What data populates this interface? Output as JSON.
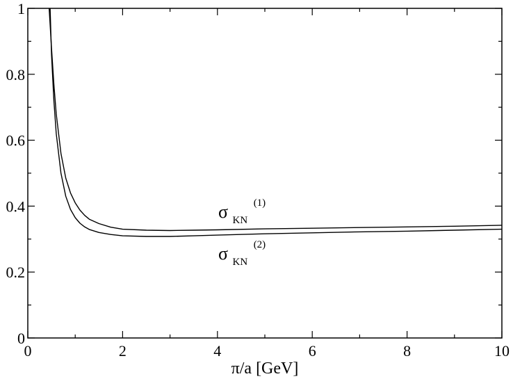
{
  "chart_data": {
    "type": "line",
    "title": "",
    "xlabel": "π/a [GeV]",
    "ylabel": "",
    "xlim": [
      0,
      10
    ],
    "ylim": [
      0,
      1
    ],
    "xticks": [
      0,
      2,
      4,
      6,
      8,
      10
    ],
    "yticks": [
      0,
      0.2,
      0.4,
      0.6,
      0.8,
      1
    ],
    "xtick_labels": [
      "0",
      "2",
      "4",
      "6",
      "8",
      "10"
    ],
    "ytick_labels": [
      "0",
      "0.2",
      "0.4",
      "0.6",
      "0.8",
      "1"
    ],
    "grid": false,
    "series": [
      {
        "name": "σKN(1)",
        "label": {
          "base": "σ",
          "sub": "KN",
          "sup": "(1)"
        },
        "x": [
          0.45,
          0.5,
          0.55,
          0.6,
          0.7,
          0.8,
          0.9,
          1.0,
          1.1,
          1.2,
          1.3,
          1.5,
          1.75,
          2.0,
          2.5,
          3.0,
          3.5,
          4.0,
          5.0,
          6.0,
          7.0,
          8.0,
          9.0,
          10.0
        ],
        "y": [
          1.0,
          0.88,
          0.77,
          0.68,
          0.56,
          0.485,
          0.44,
          0.41,
          0.388,
          0.372,
          0.36,
          0.347,
          0.336,
          0.33,
          0.327,
          0.326,
          0.327,
          0.328,
          0.331,
          0.333,
          0.335,
          0.337,
          0.339,
          0.342
        ]
      },
      {
        "name": "σKN(2)",
        "label": {
          "base": "σ",
          "sub": "KN",
          "sup": "(2)"
        },
        "x": [
          0.47,
          0.5,
          0.55,
          0.6,
          0.7,
          0.8,
          0.9,
          1.0,
          1.1,
          1.2,
          1.3,
          1.5,
          1.75,
          2.0,
          2.5,
          3.0,
          3.5,
          4.0,
          5.0,
          6.0,
          7.0,
          8.0,
          9.0,
          10.0
        ],
        "y": [
          1.0,
          0.86,
          0.72,
          0.62,
          0.5,
          0.43,
          0.39,
          0.365,
          0.348,
          0.337,
          0.329,
          0.32,
          0.314,
          0.31,
          0.308,
          0.308,
          0.31,
          0.312,
          0.316,
          0.319,
          0.322,
          0.324,
          0.327,
          0.33
        ]
      }
    ]
  }
}
